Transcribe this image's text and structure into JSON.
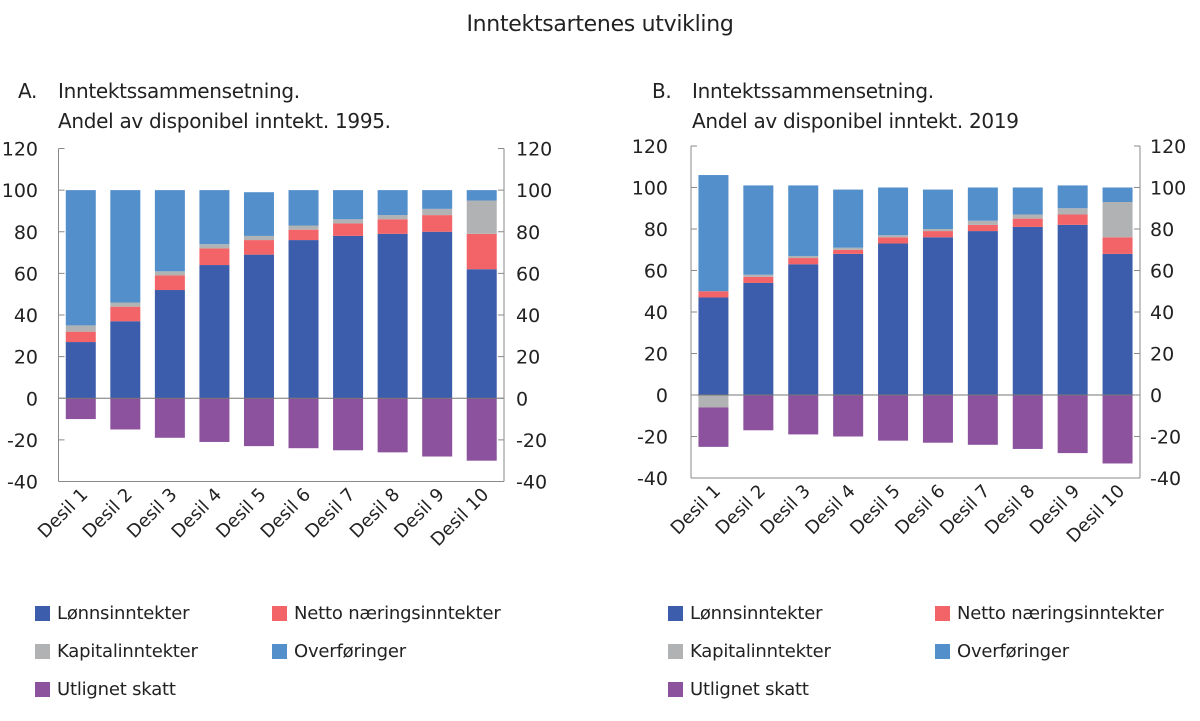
{
  "title": "Inntektsartenes utvikling",
  "panels": [
    {
      "letter": "A.",
      "heading_line1": "Inntektssammensetning.",
      "heading_line2": "Andel av disponibel inntekt. 1995."
    },
    {
      "letter": "B.",
      "heading_line1": "Inntektssammensetning.",
      "heading_line2": "Andel av disponibel inntekt. 2019"
    }
  ],
  "legend": [
    {
      "name": "Lønnsinntekter",
      "color": "#3c5dab"
    },
    {
      "name": "Netto næringsinntekter",
      "color": "#f26468"
    },
    {
      "name": "Kapitalinntekter",
      "color": "#b1b2b4"
    },
    {
      "name": "Overføringer",
      "color": "#528fcb"
    },
    {
      "name": "Utlignet skatt",
      "color": "#8c529e"
    }
  ],
  "chart_data": [
    {
      "type": "bar",
      "stacked": true,
      "title": "A. Inntektssammensetning. Andel av disponibel inntekt. 1995.",
      "xlabel": "",
      "ylabel": "",
      "ylim": [
        -40,
        120
      ],
      "yticks": [
        -40,
        -20,
        0,
        20,
        40,
        60,
        80,
        100,
        120
      ],
      "dual_y_axis": true,
      "grid": false,
      "legend_position": "bottom",
      "categories": [
        "Desil 1",
        "Desil 2",
        "Desil 3",
        "Desil 4",
        "Desil 5",
        "Desil 6",
        "Desil 7",
        "Desil 8",
        "Desil 9",
        "Desil 10"
      ],
      "series": [
        {
          "name": "Lønnsinntekter",
          "color": "#3c5dab",
          "values": [
            27,
            37,
            52,
            64,
            69,
            76,
            78,
            79,
            80,
            62
          ]
        },
        {
          "name": "Netto næringsinntekter",
          "color": "#f26468",
          "values": [
            5,
            7,
            7,
            8,
            7,
            5,
            6,
            7,
            8,
            17
          ]
        },
        {
          "name": "Kapitalinntekter",
          "color": "#b1b2b4",
          "values": [
            3,
            2,
            2,
            2,
            2,
            2,
            2,
            2,
            3,
            16
          ]
        },
        {
          "name": "Overføringer",
          "color": "#528fcb",
          "values": [
            65,
            54,
            39,
            26,
            21,
            17,
            14,
            12,
            9,
            5
          ]
        },
        {
          "name": "Utlignet skatt",
          "color": "#8c529e",
          "values": [
            -10,
            -15,
            -19,
            -21,
            -23,
            -24,
            -25,
            -26,
            -28,
            -30
          ]
        }
      ]
    },
    {
      "type": "bar",
      "stacked": true,
      "title": "B. Inntektssammensetning. Andel av disponibel inntekt. 2019",
      "xlabel": "",
      "ylabel": "",
      "ylim": [
        -40,
        120
      ],
      "yticks": [
        -40,
        -20,
        0,
        20,
        40,
        60,
        80,
        100,
        120
      ],
      "dual_y_axis": true,
      "grid": false,
      "legend_position": "bottom",
      "categories": [
        "Desil 1",
        "Desil 2",
        "Desil 3",
        "Desil 4",
        "Desil 5",
        "Desil 6",
        "Desil 7",
        "Desil 8",
        "Desil 9",
        "Desil 10"
      ],
      "series": [
        {
          "name": "Lønnsinntekter",
          "color": "#3c5dab",
          "values": [
            47,
            54,
            63,
            68,
            73,
            76,
            79,
            81,
            82,
            68
          ]
        },
        {
          "name": "Netto næringsinntekter",
          "color": "#f26468",
          "values": [
            3,
            3,
            3,
            2,
            3,
            3,
            3,
            4,
            5,
            8
          ]
        },
        {
          "name": "Kapitalinntekter",
          "color": "#b1b2b4",
          "values": [
            -6,
            1,
            1,
            1,
            1,
            1,
            2,
            2,
            3,
            17
          ]
        },
        {
          "name": "Overføringer",
          "color": "#528fcb",
          "values": [
            56,
            43,
            34,
            28,
            23,
            19,
            16,
            13,
            11,
            7
          ]
        },
        {
          "name": "Utlignet skatt",
          "color": "#8c529e",
          "values": [
            -19,
            -17,
            -19,
            -20,
            -22,
            -23,
            -24,
            -26,
            -28,
            -33
          ]
        }
      ]
    }
  ]
}
